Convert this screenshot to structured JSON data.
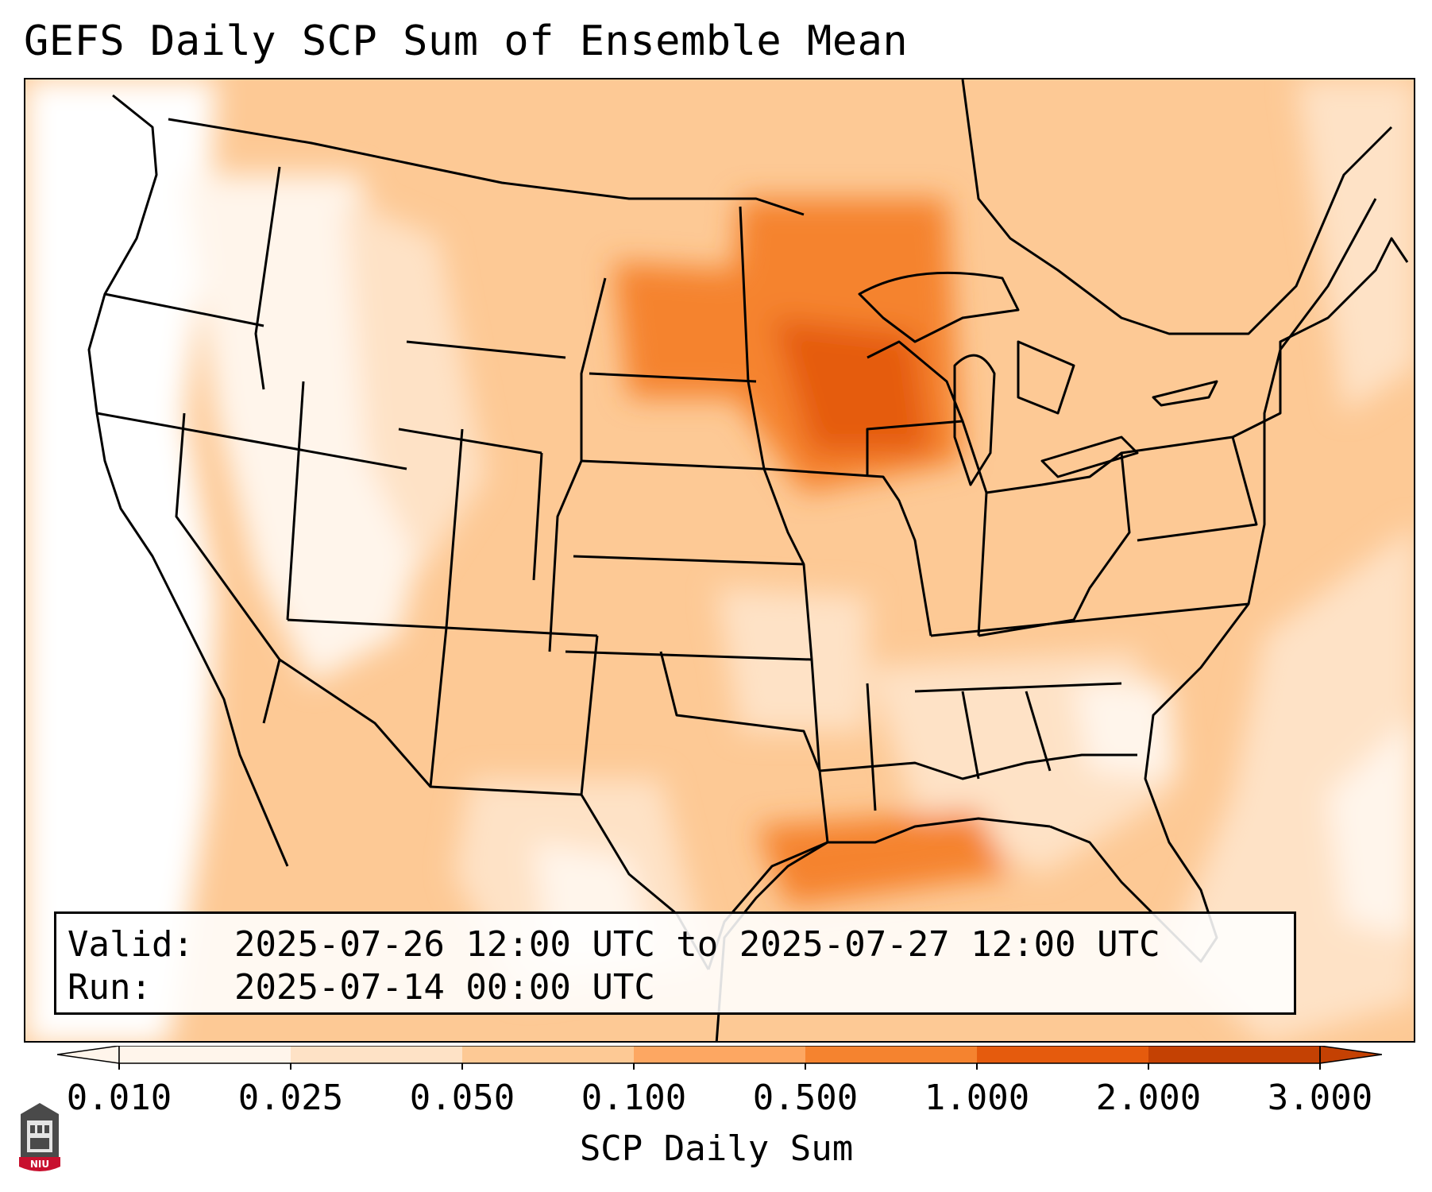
{
  "title": "GEFS Daily SCP Sum of Ensemble Mean",
  "info_box": {
    "valid_label": "Valid:",
    "valid_value": "2025-07-26 12:00 UTC to 2025-07-27 12:00 UTC",
    "run_label": "Run:",
    "run_value": "2025-07-14 00:00 UTC"
  },
  "colorbar": {
    "label": "SCP Daily Sum",
    "ticks": [
      "0.010",
      "0.025",
      "0.050",
      "0.100",
      "0.500",
      "1.000",
      "2.000",
      "3.000"
    ],
    "colors": [
      "#fff5eb",
      "#fee2c6",
      "#fdc995",
      "#fda762",
      "#f5832f",
      "#e55b0d",
      "#c44103"
    ],
    "extend": "both"
  },
  "logo": {
    "text": "NIU"
  }
}
